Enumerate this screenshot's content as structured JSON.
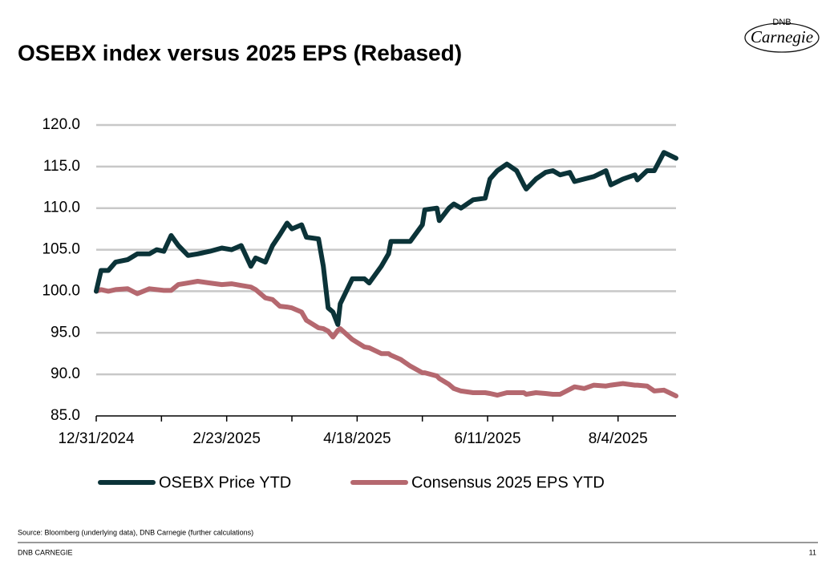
{
  "brand": {
    "top": "DNB",
    "name": "Carnegie"
  },
  "chart_data": {
    "type": "line",
    "title": "OSEBX index versus 2025 EPS (Rebased)",
    "x": [
      "12/31/2024",
      "1/2/2025",
      "1/5/2025",
      "1/8/2025",
      "1/13/2025",
      "1/17/2025",
      "1/22/2025",
      "1/25/2025",
      "1/28/2025",
      "1/31/2025",
      "2/3/2025",
      "2/7/2025",
      "2/11/2025",
      "2/16/2025",
      "2/21/2025",
      "2/25/2025",
      "3/1/2025",
      "3/5/2025",
      "3/7/2025",
      "3/11/2025",
      "3/14/2025",
      "3/17/2025",
      "3/20/2025",
      "3/22/2025",
      "3/26/2025",
      "3/28/2025",
      "4/2/2025",
      "4/4/2025",
      "4/6/2025",
      "4/8/2025",
      "4/10/2025",
      "4/11/2025",
      "4/16/2025",
      "4/21/2025",
      "4/23/2025",
      "4/28/2025",
      "5/1/2025",
      "5/2/2025",
      "5/6/2025",
      "5/10/2025",
      "5/15/2025",
      "5/16/2025",
      "5/21/2025",
      "5/22/2025",
      "5/26/2025",
      "5/28/2025",
      "5/31/2025",
      "6/5/2025",
      "6/10/2025",
      "6/12/2025",
      "6/15/2025",
      "6/19/2025",
      "6/23/2025",
      "6/26/2025",
      "6/27/2025",
      "7/1/2025",
      "7/5/2025",
      "7/8/2025",
      "7/11/2025",
      "7/15/2025",
      "7/17/2025",
      "7/21/2025",
      "7/25/2025",
      "7/30/2025",
      "8/1/2025",
      "8/6/2025",
      "8/11/2025",
      "8/12/2025",
      "8/16/2025",
      "8/19/2025",
      "8/23/2025",
      "8/28/2025"
    ],
    "series": [
      {
        "name": "OSEBX Price YTD",
        "color": "#0b3338",
        "values": [
          100,
          102.5,
          102.5,
          103.5,
          103.8,
          104.5,
          104.5,
          105,
          104.8,
          106.7,
          105.5,
          104.3,
          104.5,
          104.8,
          105.2,
          105,
          105.5,
          103,
          104,
          103.5,
          105.5,
          106.8,
          108.2,
          107.5,
          108,
          106.5,
          106.3,
          103,
          98,
          97.5,
          96,
          98.5,
          101.5,
          101.5,
          101,
          103,
          104.5,
          106,
          106,
          106,
          108,
          109.8,
          110,
          108.5,
          110,
          110.5,
          110,
          111,
          111.2,
          113.5,
          114.5,
          115.3,
          114.5,
          112.8,
          112.3,
          113.5,
          114.3,
          114.5,
          114,
          114.3,
          113.2,
          113.5,
          113.8,
          114.5,
          112.8,
          113.5,
          114,
          113.4,
          114.5,
          114.5,
          116.7,
          116
        ]
      },
      {
        "name": "Consensus 2025 EPS YTD",
        "color": "#b5686f",
        "values": [
          100,
          100.2,
          100,
          100.2,
          100.3,
          99.7,
          100.3,
          100.2,
          100.1,
          100.1,
          100.8,
          101,
          101.2,
          101,
          100.8,
          100.9,
          100.7,
          100.5,
          100.2,
          99.2,
          99,
          98.2,
          98.1,
          98,
          97.5,
          96.5,
          95.6,
          95.5,
          95.2,
          94.5,
          95.3,
          95.5,
          94.2,
          93.3,
          93.2,
          92.5,
          92.5,
          92.3,
          91.8,
          91,
          90.2,
          90.2,
          89.8,
          89.5,
          88.8,
          88.3,
          88,
          87.8,
          87.8,
          87.7,
          87.5,
          87.8,
          87.8,
          87.8,
          87.6,
          87.8,
          87.7,
          87.6,
          87.6,
          88.2,
          88.5,
          88.3,
          88.7,
          88.6,
          88.7,
          88.9,
          88.7,
          88.7,
          88.6,
          88,
          88.1,
          87.4
        ]
      }
    ],
    "xlim": [
      "12/31/2024",
      "8/28/2025"
    ],
    "xticks": [
      "12/31/2024",
      "2/23/2025",
      "4/18/2025",
      "6/11/2025",
      "8/4/2025"
    ],
    "ylim": [
      85,
      120
    ],
    "yticks": [
      {
        "value": 85,
        "label": "85.0"
      },
      {
        "value": 90,
        "label": "90.0"
      },
      {
        "value": 95,
        "label": "95.0"
      },
      {
        "value": 100,
        "label": "100.0"
      },
      {
        "value": 105,
        "label": "105.0"
      },
      {
        "value": 110,
        "label": "110.0"
      },
      {
        "value": 115,
        "label": "115.0"
      },
      {
        "value": 120,
        "label": "120.0"
      }
    ],
    "grid": true,
    "legend": "bottom"
  },
  "footer": {
    "source": "Source: Bloomberg (underlying data), DNB Carnegie (further calculations)",
    "company": "DNB CARNEGIE",
    "page": "11"
  }
}
